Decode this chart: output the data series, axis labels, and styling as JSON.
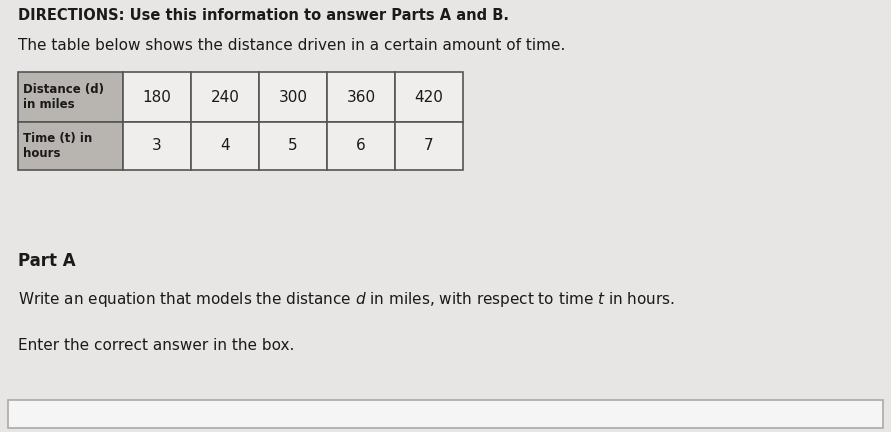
{
  "bg_color": "#e8e6e4",
  "title_text": "DIRECTIONS: Use this information to answer Parts A and B.",
  "subtitle_text": "The table below shows the distance driven in a certain amount of time.",
  "row1_header": "Distance (d)\nin miles",
  "row2_header": "Time (t) in\nhours",
  "distance_values": [
    180,
    240,
    300,
    360,
    420
  ],
  "time_values": [
    3,
    4,
    5,
    6,
    7
  ],
  "part_label": "Part A",
  "enter_text": "Enter the correct answer in the box.",
  "header_color": "#b8b4b0",
  "cell_color": "#f0eeec",
  "border_color": "#555555",
  "text_color": "#1a1a1a",
  "title_fontsize": 10.5,
  "body_fontsize": 11,
  "part_fontsize": 12,
  "table_header_fontsize": 8.5,
  "table_data_fontsize": 11
}
